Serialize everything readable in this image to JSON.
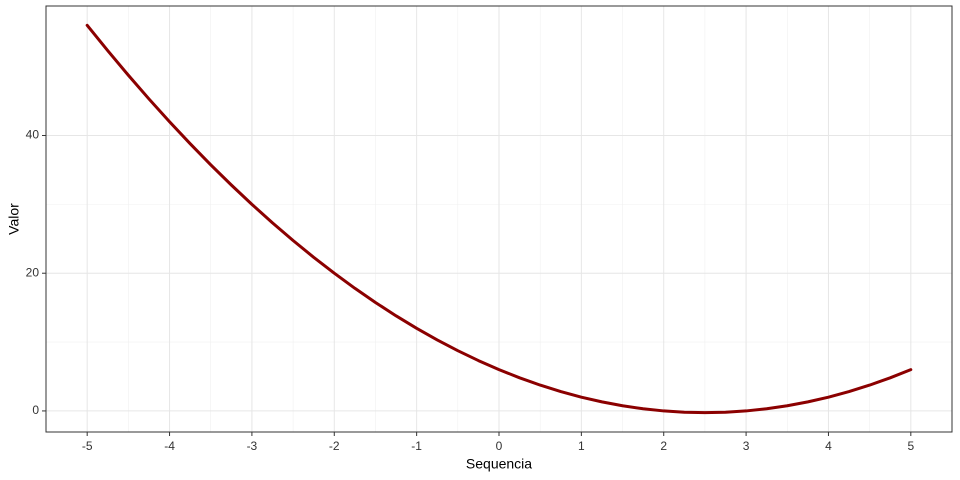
{
  "chart_data": {
    "type": "line",
    "x_label": "Sequencia",
    "y_label": "Valor",
    "x": [
      -5,
      -4.75,
      -4.5,
      -4.25,
      -4,
      -3.75,
      -3.5,
      -3.25,
      -3,
      -2.75,
      -2.5,
      -2.25,
      -2,
      -1.75,
      -1.5,
      -1.25,
      -1,
      -0.75,
      -0.5,
      -0.25,
      0,
      0.25,
      0.5,
      0.75,
      1,
      1.25,
      1.5,
      1.75,
      2,
      2.25,
      2.5,
      2.75,
      3,
      3.25,
      3.5,
      3.75,
      4,
      4.25,
      4.5,
      4.75,
      5
    ],
    "values": [
      56,
      52.3125,
      48.75,
      45.3125,
      42,
      38.8125,
      35.75,
      32.8125,
      30,
      27.3125,
      24.75,
      22.3125,
      20,
      17.8125,
      15.75,
      13.8125,
      12,
      10.3125,
      8.75,
      7.3125,
      6,
      4.8125,
      3.75,
      2.8125,
      2,
      1.3125,
      0.75,
      0.3125,
      0,
      -0.1875,
      -0.25,
      -0.1875,
      0,
      0.3125,
      0.75,
      1.3125,
      2,
      2.8125,
      3.75,
      4.8125,
      6
    ],
    "color": "#8b0000",
    "xlim": [
      -5.5,
      5.5
    ],
    "xticks": [
      -5,
      -4,
      -3,
      -2,
      -1,
      0,
      1,
      2,
      3,
      4,
      5
    ],
    "ylim": [
      -3.06,
      58.81
    ],
    "yticks": [
      0,
      20,
      40
    ],
    "grid": true
  }
}
